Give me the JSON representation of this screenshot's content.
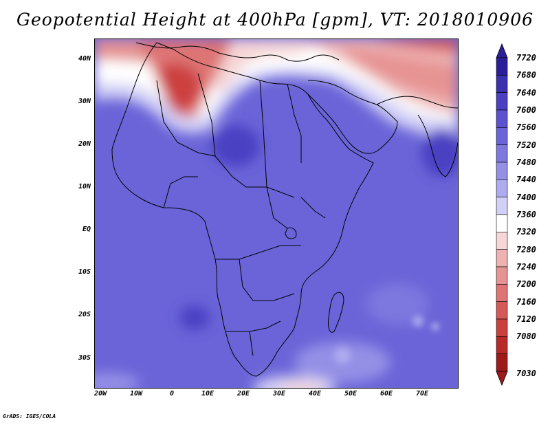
{
  "title": "Geopotential Height at 400hPa [gpm], VT: 2018010906",
  "footer": "GrADS: IGES/COLA",
  "axes": {
    "lat_labels": [
      "40N",
      "30N",
      "20N",
      "10N",
      "EQ",
      "10S",
      "20S",
      "30S"
    ],
    "lon_labels": [
      "20W",
      "10W",
      "0",
      "10E",
      "20E",
      "30E",
      "40E",
      "50E",
      "60E",
      "70E"
    ]
  },
  "colorbar": {
    "levels": [
      "7720",
      "7680",
      "7640",
      "7600",
      "7560",
      "7520",
      "7480",
      "7440",
      "7400",
      "7360",
      "7320",
      "7280",
      "7240",
      "7200",
      "7160",
      "7120",
      "7080",
      "7030"
    ],
    "colors": [
      "#2b1f99",
      "#3a30b0",
      "#4a40c2",
      "#5a52cf",
      "#6a64d8",
      "#7d78df",
      "#9490e6",
      "#aeabee",
      "#d2d0f6",
      "#ffffff",
      "#f6d6d6",
      "#eeb2b2",
      "#e69393",
      "#de7474",
      "#d65858",
      "#cc3f3f",
      "#b82a2a",
      "#9e1a1a"
    ]
  },
  "chart_data": {
    "type": "heatmap",
    "variable": "Geopotential Height",
    "level": "400hPa",
    "units": "gpm",
    "valid_time": "2018010906",
    "domain": {
      "lon": [
        -20,
        80
      ],
      "lat": [
        -37,
        45
      ]
    },
    "range": [
      7030,
      7720
    ],
    "features": [
      {
        "name": "low over Morocco/Algeria",
        "lon": 0,
        "lat": 34,
        "value": 7140
      },
      {
        "name": "low over Mediterranean",
        "lon": 10,
        "lat": 42,
        "value": 7180
      },
      {
        "name": "low over Middle East",
        "lon": 50,
        "lat": 36,
        "value": 7250
      },
      {
        "name": "high over Sudan/Chad",
        "lon": 18,
        "lat": 18,
        "value": 7560
      },
      {
        "name": "high over India",
        "lon": 75,
        "lat": 17,
        "value": 7560
      },
      {
        "name": "high over Namibia",
        "lon": 22,
        "lat": -20,
        "value": 7560
      },
      {
        "name": "background tropics",
        "lon": 30,
        "lat": 0,
        "value": 7530
      }
    ]
  }
}
